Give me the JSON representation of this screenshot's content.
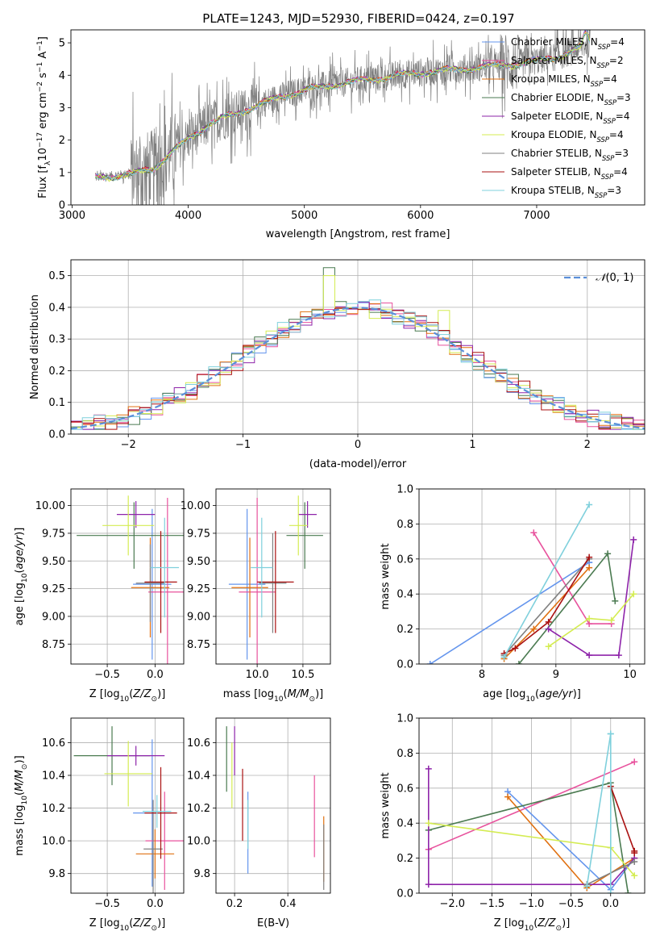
{
  "figure_title": "PLATE=1243, MJD=52930, FIBERID=0424, z=0.197",
  "colors": [
    "#6495ed",
    "#e8529d",
    "#e07010",
    "#4a7a50",
    "#8e24aa",
    "#d4ec52",
    "#808080",
    "#aa1111",
    "#7fd0dc"
  ],
  "chart_data": [
    {
      "id": "spectrum",
      "type": "line",
      "xlabel": "wavelength [Angstrom, rest frame]",
      "ylabel": "Flux [f_λ 10^-17 erg cm^-2 s^-1 A^-1]",
      "xlim": [
        2990,
        7930
      ],
      "ylim": [
        0,
        5.4
      ],
      "xticks": [
        3000,
        4000,
        5000,
        6000,
        7000
      ],
      "yticks": [
        0,
        1,
        2,
        3,
        4,
        5
      ],
      "legend": "top-right",
      "legend_entries": [
        "Chabrier MILES, N_SSP=4",
        "Salpeter MILES, N_SSP=2",
        "Kroupa MILES, N_SSP=4",
        "Chabrier ELODIE, N_SSP=3",
        "Salpeter ELODIE, N_SSP=4",
        "Kroupa ELODIE, N_SSP=4",
        "Chabrier STELIB, N_SSP=3",
        "Salpeter STELIB, N_SSP=4",
        "Kroupa STELIB, N_SSP=3"
      ],
      "data_continuum": {
        "x": [
          3200,
          3500,
          3700,
          3900,
          4000,
          4200,
          4500,
          4800,
          5000,
          5300,
          5600,
          5900,
          6200,
          6500,
          6800,
          7000,
          7200,
          7400,
          7450
        ],
        "y": [
          0.85,
          0.95,
          1.15,
          1.75,
          2.05,
          2.55,
          2.95,
          3.35,
          3.55,
          3.75,
          3.9,
          4.05,
          4.15,
          4.25,
          4.35,
          4.45,
          4.6,
          4.9,
          5.0
        ]
      }
    },
    {
      "id": "residuals",
      "type": "histogram",
      "xlabel": "(data-model)/error",
      "ylabel": "Normed distribution",
      "xlim": [
        -2.5,
        2.5
      ],
      "ylim": [
        0,
        0.55
      ],
      "xticks": [
        -2,
        -1,
        0,
        1,
        2
      ],
      "yticks": [
        0.0,
        0.1,
        0.2,
        0.3,
        0.4,
        0.5
      ],
      "legend_label": "N(0,1)",
      "grid": true
    },
    {
      "id": "age_vs_Z",
      "type": "scatter_errorbar",
      "xlabel": "Z [log10(Z/Z_sun)]",
      "ylabel": "age [log10(age/yr)]",
      "xlim": [
        -0.88,
        0.3
      ],
      "ylim": [
        8.57,
        10.15
      ],
      "xticks": [
        -0.5,
        0.0
      ],
      "yticks": [
        8.75,
        9.0,
        9.25,
        9.5,
        9.75,
        10.0
      ],
      "points": [
        {
          "x": -0.03,
          "y": 9.29,
          "xerr": 0.2,
          "yerr": 0.68
        },
        {
          "x": 0.13,
          "y": 9.22,
          "xerr": 0.2,
          "yerr": 0.85
        },
        {
          "x": -0.05,
          "y": 9.26,
          "xerr": 0.2,
          "yerr": 0.45
        },
        {
          "x": -0.22,
          "y": 9.73,
          "xerr": 0.6,
          "yerr": 0.3
        },
        {
          "x": -0.2,
          "y": 9.92,
          "xerr": 0.2,
          "yerr": 0.12
        },
        {
          "x": -0.28,
          "y": 9.82,
          "xerr": 0.27,
          "yerr": 0.27
        },
        {
          "x": -0.05,
          "y": 9.3,
          "xerr": 0.15,
          "yerr": 0.35
        },
        {
          "x": 0.06,
          "y": 9.31,
          "xerr": 0.17,
          "yerr": 0.46
        },
        {
          "x": 0.1,
          "y": 9.44,
          "xerr": 0.15,
          "yerr": 0.45
        }
      ]
    },
    {
      "id": "age_vs_mass",
      "type": "scatter_errorbar",
      "xlabel": "mass [log10(M/M_sun)]",
      "ylabel": "",
      "xlim": [
        9.55,
        10.8
      ],
      "ylim": [
        8.57,
        10.15
      ],
      "xticks": [
        10.0,
        10.5
      ],
      "yticks": [
        8.75,
        9.0,
        9.25,
        9.5,
        9.75,
        10.0
      ],
      "points": [
        {
          "x": 9.89,
          "y": 9.29,
          "xerr": 0.2,
          "yerr": 0.68
        },
        {
          "x": 10.0,
          "y": 9.22,
          "xerr": 0.2,
          "yerr": 0.85
        },
        {
          "x": 9.92,
          "y": 9.26,
          "xerr": 0.2,
          "yerr": 0.45
        },
        {
          "x": 10.52,
          "y": 9.73,
          "xerr": 0.2,
          "yerr": 0.3
        },
        {
          "x": 10.55,
          "y": 9.92,
          "xerr": 0.1,
          "yerr": 0.12
        },
        {
          "x": 10.45,
          "y": 9.82,
          "xerr": 0.1,
          "yerr": 0.27
        },
        {
          "x": 10.17,
          "y": 9.3,
          "xerr": 0.15,
          "yerr": 0.45
        },
        {
          "x": 10.2,
          "y": 9.31,
          "xerr": 0.2,
          "yerr": 0.46
        },
        {
          "x": 10.05,
          "y": 9.44,
          "xerr": 0.12,
          "yerr": 0.45
        }
      ]
    },
    {
      "id": "weight_vs_age",
      "type": "line",
      "xlabel": "age [log10(age/yr)]",
      "ylabel": "mass weight",
      "xlim": [
        7.15,
        10.2
      ],
      "ylim": [
        0,
        1.0
      ],
      "xticks": [
        8,
        9,
        10
      ],
      "yticks": [
        0.0,
        0.2,
        0.4,
        0.6,
        0.8,
        1.0
      ],
      "series": [
        {
          "x": [
            7.3,
            9.45,
            9.45
          ],
          "y": [
            0.0,
            0.58,
            0.58
          ]
        },
        {
          "x": [
            8.7,
            9.45,
            9.75
          ],
          "y": [
            0.75,
            0.23,
            0.23
          ]
        },
        {
          "x": [
            8.3,
            8.7,
            9.45
          ],
          "y": [
            0.03,
            0.2,
            0.55
          ]
        },
        {
          "x": [
            8.5,
            9.7,
            9.8
          ],
          "y": [
            0.0,
            0.63,
            0.36
          ]
        },
        {
          "x": [
            8.9,
            9.45,
            9.85,
            10.05
          ],
          "y": [
            0.2,
            0.05,
            0.05,
            0.71
          ]
        },
        {
          "x": [
            8.9,
            9.45,
            9.75,
            10.05
          ],
          "y": [
            0.1,
            0.26,
            0.25,
            0.4
          ]
        },
        {
          "x": [
            8.3,
            9.45
          ],
          "y": [
            0.05,
            0.6
          ]
        },
        {
          "x": [
            8.3,
            8.45,
            8.9,
            9.45
          ],
          "y": [
            0.06,
            0.09,
            0.24,
            0.61
          ]
        },
        {
          "x": [
            8.3,
            9.45
          ],
          "y": [
            0.04,
            0.91
          ]
        }
      ]
    },
    {
      "id": "mass_vs_Z",
      "type": "scatter_errorbar",
      "xlabel": "Z [log10(Z/Z_sun)]",
      "ylabel": "mass [log10(M/M_sun)]",
      "xlim": [
        -0.88,
        0.3
      ],
      "ylim": [
        9.68,
        10.75
      ],
      "xticks": [
        -0.5,
        0.0
      ],
      "yticks": [
        9.8,
        10.0,
        10.2,
        10.4,
        10.6
      ],
      "points": [
        {
          "x": -0.03,
          "y": 10.17,
          "xerr": 0.2,
          "yerr": 0.45
        },
        {
          "x": 0.1,
          "y": 10.0,
          "xerr": 0.2,
          "yerr": 0.3
        },
        {
          "x": 0.0,
          "y": 9.92,
          "xerr": 0.2,
          "yerr": 0.15
        },
        {
          "x": -0.45,
          "y": 10.52,
          "xerr": 0.4,
          "yerr": 0.18
        },
        {
          "x": -0.2,
          "y": 10.52,
          "xerr": 0.3,
          "yerr": 0.06
        },
        {
          "x": -0.28,
          "y": 10.41,
          "xerr": 0.25,
          "yerr": 0.2
        },
        {
          "x": -0.02,
          "y": 9.95,
          "xerr": 0.1,
          "yerr": 0.3
        },
        {
          "x": 0.06,
          "y": 10.17,
          "xerr": 0.17,
          "yerr": 0.28
        },
        {
          "x": 0.02,
          "y": 10.18,
          "xerr": 0.15,
          "yerr": 0.1
        }
      ]
    },
    {
      "id": "mass_vs_ebv",
      "type": "scatter_errorbar",
      "xlabel": "E(B-V)",
      "ylabel": "",
      "xlim": [
        0.13,
        0.56
      ],
      "ylim": [
        9.68,
        10.75
      ],
      "xticks": [
        0.2,
        0.4
      ],
      "yticks": [
        9.8,
        10.0,
        10.2,
        10.4,
        10.6
      ],
      "points": [
        {
          "x": 0.25,
          "y": 10.05,
          "yerr": 0.25
        },
        {
          "x": 0.5,
          "y": 10.15,
          "yerr": 0.25
        },
        {
          "x": 0.535,
          "y": 9.95,
          "yerr": 0.2
        },
        {
          "x": 0.17,
          "y": 10.5,
          "yerr": 0.2
        },
        {
          "x": 0.2,
          "y": 10.55,
          "yerr": 0.15
        },
        {
          "x": 0.19,
          "y": 10.4,
          "yerr": 0.2
        },
        {
          "x": 0.535,
          "y": 9.9,
          "yerr": 0.2
        },
        {
          "x": 0.23,
          "y": 10.22,
          "yerr": 0.22
        },
        {
          "x": 0.25,
          "y": 10.1,
          "yerr": 0.15
        }
      ]
    },
    {
      "id": "weight_vs_Z",
      "type": "line",
      "xlabel": "Z [log10(Z/Z_sun)]",
      "ylabel": "mass weight",
      "xlim": [
        -2.42,
        0.43
      ],
      "ylim": [
        0,
        1.0
      ],
      "xticks": [
        -2.0,
        -1.5,
        -1.0,
        -0.5,
        0.0
      ],
      "yticks": [
        0.0,
        0.2,
        0.4,
        0.6,
        0.8,
        1.0
      ],
      "series": [
        {
          "x": [
            -1.3,
            0.0,
            0.3
          ],
          "y": [
            0.58,
            0.02,
            0.2
          ]
        },
        {
          "x": [
            -2.3,
            0.3
          ],
          "y": [
            0.25,
            0.75
          ]
        },
        {
          "x": [
            -1.3,
            -0.3,
            0.3
          ],
          "y": [
            0.55,
            0.03,
            0.2
          ]
        },
        {
          "x": [
            -2.3,
            0.0,
            0.22
          ],
          "y": [
            0.36,
            0.63,
            0.0
          ]
        },
        {
          "x": [
            -2.3,
            -2.3,
            0.0,
            0.3
          ],
          "y": [
            0.71,
            0.05,
            0.05,
            0.2
          ]
        },
        {
          "x": [
            -2.3,
            0.0,
            0.3
          ],
          "y": [
            0.4,
            0.26,
            0.1
          ]
        },
        {
          "x": [
            -0.3,
            0.3
          ],
          "y": [
            0.05,
            0.18
          ]
        },
        {
          "x": [
            0.0,
            0.3,
            0.3
          ],
          "y": [
            0.61,
            0.24,
            0.23
          ]
        },
        {
          "x": [
            -0.3,
            0.0,
            0.0,
            0.0
          ],
          "y": [
            0.04,
            0.91,
            0.0,
            0.91
          ]
        }
      ]
    }
  ]
}
